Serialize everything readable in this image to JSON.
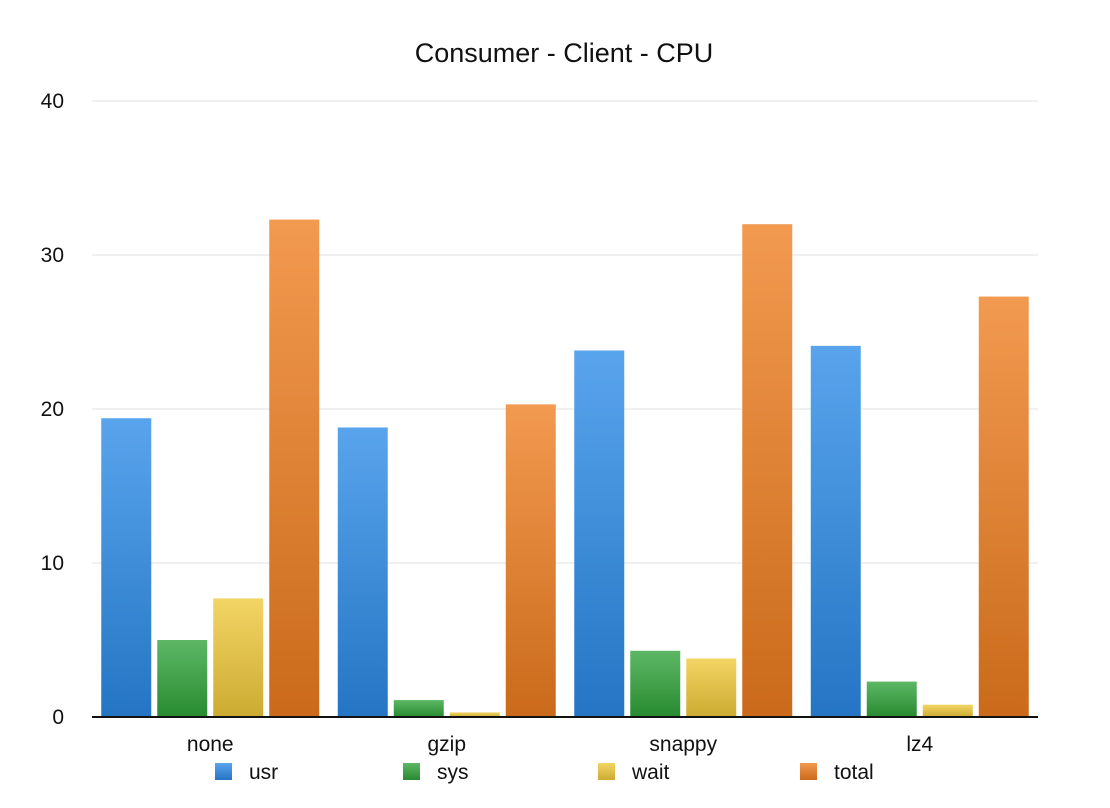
{
  "chart_data": {
    "type": "bar",
    "title": "Consumer - Client - CPU",
    "xlabel": "",
    "ylabel": "",
    "categories": [
      "none",
      "gzip",
      "snappy",
      "lz4"
    ],
    "series": [
      {
        "name": "usr",
        "color": "#2a8ae6",
        "values": [
          19.4,
          18.8,
          23.8,
          24.1
        ]
      },
      {
        "name": "sys",
        "color": "#2fa339",
        "values": [
          5.0,
          1.1,
          4.3,
          2.3
        ]
      },
      {
        "name": "wait",
        "color": "#f0c93a",
        "values": [
          7.7,
          0.3,
          3.8,
          0.8
        ]
      },
      {
        "name": "total",
        "color": "#ee7d1f",
        "values": [
          32.3,
          20.3,
          32.0,
          27.3
        ]
      }
    ],
    "ylim": [
      0,
      40
    ],
    "yticks": [
      0,
      10,
      20,
      30,
      40
    ],
    "grid": true,
    "legend_position": "bottom"
  }
}
